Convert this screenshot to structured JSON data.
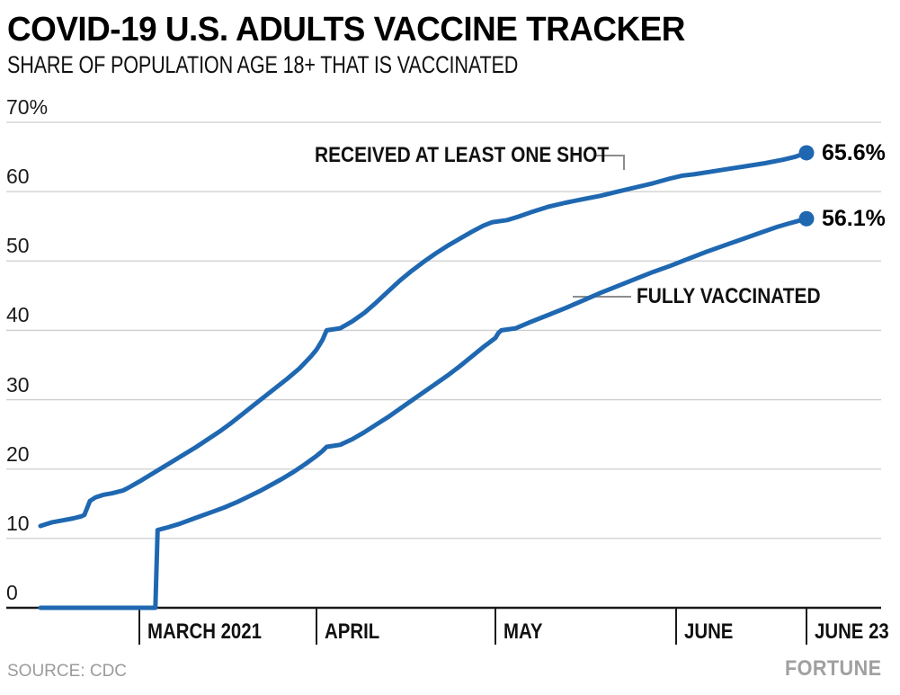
{
  "header": {
    "title": "COVID-19 U.S. ADULTS VACCINE TRACKER",
    "subtitle": "SHARE OF POPULATION AGE 18+ THAT IS VACCINATED"
  },
  "footer": {
    "source": "SOURCE: CDC",
    "brand": "FORTUNE"
  },
  "chart_data": {
    "type": "line",
    "title": "COVID-19 U.S. ADULTS VACCINE TRACKER",
    "subtitle": "SHARE OF POPULATION AGE 18+ THAT IS VACCINATED",
    "unit": "%",
    "grid": "horizontal",
    "x_axis": {
      "start_date": "2021-02-11",
      "end_date": "2021-06-23",
      "ticks": [
        {
          "label": "MARCH 2021",
          "day": 18
        },
        {
          "label": "APRIL",
          "day": 49
        },
        {
          "label": "MAY",
          "day": 79
        },
        {
          "label": "JUNE",
          "day": 110
        },
        {
          "label": "JUNE 23",
          "day": 132
        }
      ]
    },
    "y_axis": {
      "range": [
        0,
        70
      ],
      "tick_values": [
        70,
        60,
        50,
        40,
        30,
        20,
        10,
        0
      ],
      "tick_labels": [
        "70%",
        "60",
        "50",
        "40",
        "30",
        "20",
        "10",
        "0"
      ]
    },
    "colors": {
      "line": "#1f68b1",
      "grid": "#cdcdcd",
      "axis": "#1a1a1a",
      "connector": "#8c8c8c"
    },
    "series": [
      {
        "name": "RECEIVED AT LEAST ONE SHOT",
        "end_label": "65.6%",
        "final_value": 65.6,
        "points": [
          [
            0,
            11.8
          ],
          [
            2,
            12.3
          ],
          [
            4,
            12.6
          ],
          [
            6,
            12.9
          ],
          [
            7.5,
            13.2
          ],
          [
            8,
            13.4
          ],
          [
            9,
            15.4
          ],
          [
            10,
            15.9
          ],
          [
            11.5,
            16.3
          ],
          [
            13,
            16.5
          ],
          [
            15,
            16.9
          ],
          [
            16,
            17.3
          ],
          [
            18,
            18.2
          ],
          [
            20,
            19.2
          ],
          [
            22,
            20.2
          ],
          [
            24,
            21.2
          ],
          [
            26,
            22.2
          ],
          [
            28,
            23.2
          ],
          [
            30,
            24.3
          ],
          [
            32,
            25.4
          ],
          [
            34,
            26.6
          ],
          [
            36,
            27.9
          ],
          [
            38,
            29.2
          ],
          [
            40,
            30.5
          ],
          [
            42,
            31.8
          ],
          [
            44,
            33.1
          ],
          [
            46,
            34.5
          ],
          [
            48,
            36.2
          ],
          [
            49,
            37.2
          ],
          [
            50,
            38.6
          ],
          [
            50.7,
            40.0
          ],
          [
            53,
            40.3
          ],
          [
            55,
            41.3
          ],
          [
            57,
            42.5
          ],
          [
            59,
            44.0
          ],
          [
            61,
            45.6
          ],
          [
            63,
            47.2
          ],
          [
            65,
            48.6
          ],
          [
            67,
            49.9
          ],
          [
            69,
            51.1
          ],
          [
            71,
            52.2
          ],
          [
            73,
            53.2
          ],
          [
            75,
            54.2
          ],
          [
            77,
            55.1
          ],
          [
            78.5,
            55.6
          ],
          [
            81,
            55.9
          ],
          [
            83,
            56.4
          ],
          [
            85,
            57.0
          ],
          [
            88,
            57.8
          ],
          [
            91,
            58.4
          ],
          [
            94,
            58.9
          ],
          [
            97,
            59.4
          ],
          [
            100,
            60.0
          ],
          [
            103,
            60.6
          ],
          [
            106,
            61.2
          ],
          [
            109,
            61.9
          ],
          [
            111,
            62.3
          ],
          [
            113,
            62.5
          ],
          [
            116,
            62.9
          ],
          [
            119,
            63.3
          ],
          [
            122,
            63.7
          ],
          [
            125,
            64.1
          ],
          [
            128,
            64.6
          ],
          [
            130,
            65.0
          ],
          [
            132,
            65.6
          ]
        ]
      },
      {
        "name": "FULLY VACCINATED",
        "end_label": "56.1%",
        "final_value": 56.1,
        "points": [
          [
            0,
            0
          ],
          [
            20.8,
            0
          ],
          [
            21.2,
            11.2
          ],
          [
            23,
            11.6
          ],
          [
            25,
            12.1
          ],
          [
            27,
            12.7
          ],
          [
            29,
            13.3
          ],
          [
            31,
            13.9
          ],
          [
            33,
            14.5
          ],
          [
            35,
            15.2
          ],
          [
            37,
            16.0
          ],
          [
            39,
            16.8
          ],
          [
            41,
            17.7
          ],
          [
            43,
            18.6
          ],
          [
            45,
            19.6
          ],
          [
            47,
            20.7
          ],
          [
            49,
            21.9
          ],
          [
            50,
            22.6
          ],
          [
            50.7,
            23.2
          ],
          [
            53,
            23.5
          ],
          [
            55,
            24.3
          ],
          [
            57,
            25.3
          ],
          [
            59,
            26.4
          ],
          [
            61,
            27.5
          ],
          [
            63,
            28.7
          ],
          [
            65,
            29.9
          ],
          [
            67,
            31.1
          ],
          [
            69,
            32.3
          ],
          [
            71,
            33.5
          ],
          [
            73,
            34.8
          ],
          [
            75,
            36.2
          ],
          [
            77,
            37.6
          ],
          [
            79,
            38.9
          ],
          [
            79.5,
            39.6
          ],
          [
            80,
            40.0
          ],
          [
            82.5,
            40.3
          ],
          [
            85,
            41.2
          ],
          [
            88,
            42.2
          ],
          [
            91,
            43.2
          ],
          [
            94,
            44.3
          ],
          [
            97,
            45.4
          ],
          [
            100,
            46.4
          ],
          [
            103,
            47.4
          ],
          [
            106,
            48.4
          ],
          [
            109,
            49.3
          ],
          [
            112,
            50.3
          ],
          [
            115,
            51.3
          ],
          [
            118,
            52.2
          ],
          [
            121,
            53.1
          ],
          [
            124,
            54.0
          ],
          [
            127,
            54.9
          ],
          [
            129,
            55.4
          ],
          [
            132,
            56.1
          ]
        ]
      }
    ]
  }
}
